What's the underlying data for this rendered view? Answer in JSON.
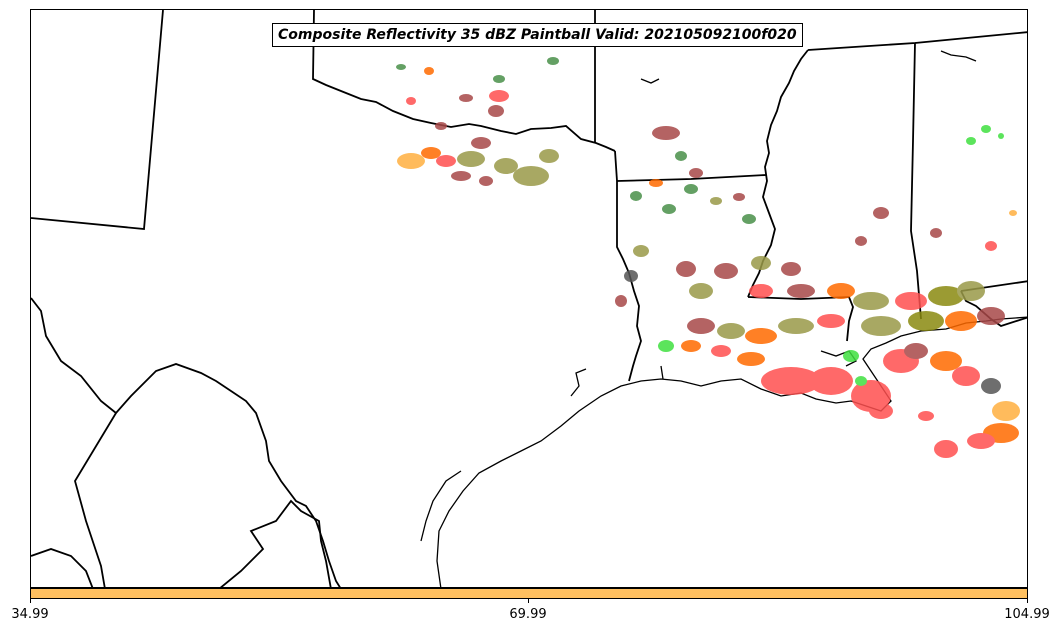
{
  "title": "Composite Reflectivity 35 dBZ Paintball Valid: 202105092100f020",
  "colorbar": {
    "color": "#ffc060",
    "ticks": [
      "34.99",
      "69.99",
      "104.99"
    ]
  },
  "map": {
    "region": "Southern Plains / Gulf Coast",
    "background_color": "#ffffff",
    "boundary_color": "#000000",
    "member_colors": [
      "#ff5050",
      "#a84848",
      "#9a9a48",
      "#4a904a",
      "#ffb040",
      "#ff6a00",
      "#40e040",
      "#8a8a10",
      "#555555"
    ]
  }
}
